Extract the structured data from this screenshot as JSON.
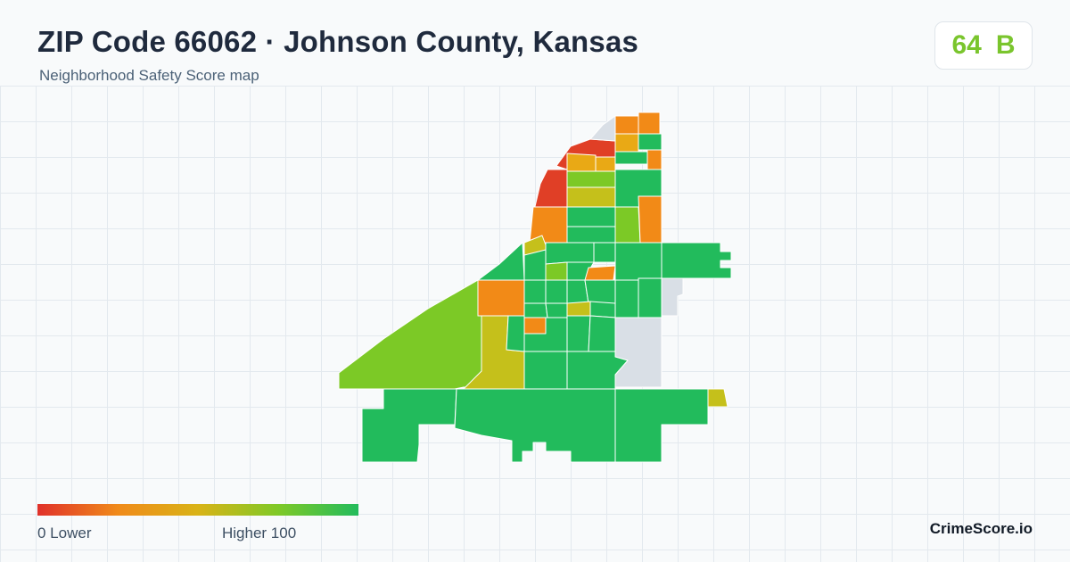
{
  "header": {
    "title": "ZIP Code 66062 · Johnson County, Kansas",
    "subtitle": "Neighborhood Safety Score map"
  },
  "score": {
    "value": "64",
    "grade": "B",
    "color": "#7ac52d"
  },
  "legend": {
    "low_label": "0  Lower",
    "high_label": "Higher  100",
    "colors": [
      "#e0312a",
      "#f08a1a",
      "#d9b317",
      "#7fc927",
      "#22bb5c"
    ]
  },
  "brand": "CrimeScore.io",
  "map": {
    "region": "ZIP 66062",
    "palette": {
      "red": "#e03f26",
      "orange": "#f28a17",
      "amber": "#e9a915",
      "olive": "#c5c01b",
      "lime": "#7cc926",
      "green": "#22bb5c",
      "no-data": "#d9dfe6"
    }
  }
}
